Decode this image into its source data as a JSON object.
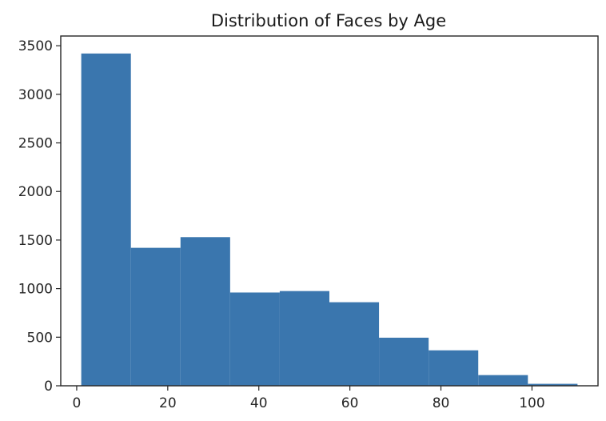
{
  "chart_data": {
    "type": "bar",
    "title": "Distribution of Faces by Age",
    "xlabel": "",
    "ylabel": "",
    "bin_edges": [
      1,
      11.9,
      22.8,
      33.7,
      44.6,
      55.5,
      66.4,
      77.3,
      88.2,
      99.1,
      110
    ],
    "values": [
      3420,
      1420,
      1530,
      960,
      975,
      860,
      495,
      365,
      110,
      20
    ],
    "xlim": [
      -3.5,
      114.5
    ],
    "ylim": [
      0,
      3600
    ],
    "xticks": [
      0,
      20,
      40,
      60,
      80,
      100
    ],
    "yticks": [
      0,
      500,
      1000,
      1500,
      2000,
      2500,
      3000,
      3500
    ],
    "grid": false,
    "legend": "none",
    "bar_color": "#3a76ae",
    "axis_color": "#262626"
  }
}
